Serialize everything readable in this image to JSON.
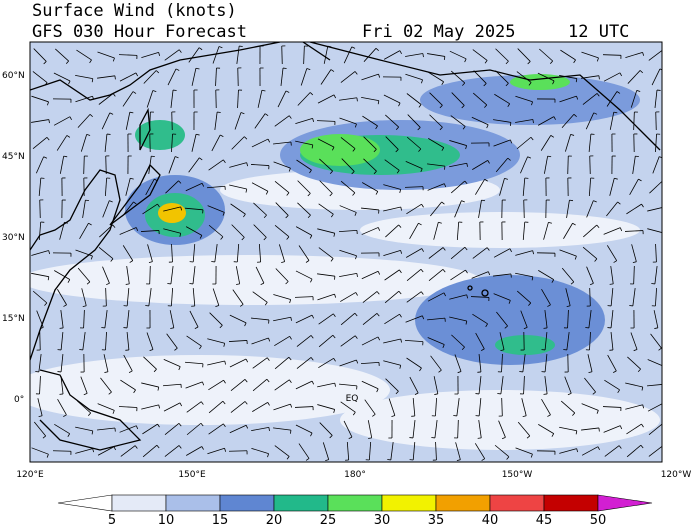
{
  "header": {
    "title": "Surface Wind (knots)",
    "subtitle": "GFS 030 Hour Forecast",
    "date": "Fri 02 May 2025",
    "time": "12 UTC"
  },
  "map": {
    "lat_labels": [
      "60°N",
      "45°N",
      "30°N",
      "15°N",
      "0°"
    ],
    "lon_labels": [
      "120°E",
      "150°E",
      "180°",
      "150°W",
      "120°W"
    ],
    "equator_label": "EQ"
  },
  "colorbar": {
    "labels": [
      5,
      10,
      15,
      20,
      25,
      30,
      35,
      40,
      45,
      50
    ],
    "colors": [
      "#ffffff",
      "#e4eaf7",
      "#aabfe9",
      "#5f86d2",
      "#22b98a",
      "#5ae05a",
      "#f2f200",
      "#f2a000",
      "#ee4444",
      "#c40000",
      "#d21fd2"
    ]
  }
}
